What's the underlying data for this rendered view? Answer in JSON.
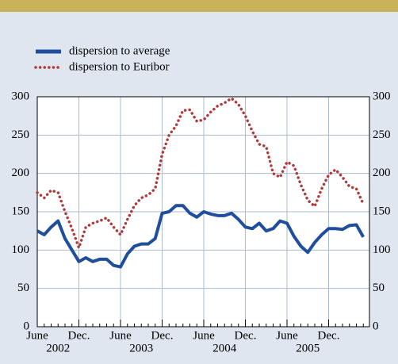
{
  "chart_data": {
    "type": "line",
    "x": [
      "2002-06",
      "2002-07",
      "2002-08",
      "2002-09",
      "2002-10",
      "2002-11",
      "2002-12",
      "2003-01",
      "2003-02",
      "2003-03",
      "2003-04",
      "2003-05",
      "2003-06",
      "2003-07",
      "2003-08",
      "2003-09",
      "2003-10",
      "2003-11",
      "2003-12",
      "2004-01",
      "2004-02",
      "2004-03",
      "2004-04",
      "2004-05",
      "2004-06",
      "2004-07",
      "2004-08",
      "2004-09",
      "2004-10",
      "2004-11",
      "2004-12",
      "2005-01",
      "2005-02",
      "2005-03",
      "2005-04",
      "2005-05",
      "2005-06",
      "2005-07",
      "2005-08",
      "2005-09",
      "2005-10",
      "2005-11",
      "2005-12",
      "2006-01",
      "2006-02",
      "2006-03",
      "2006-04",
      "2006-05"
    ],
    "series": [
      {
        "name": "dispersion to average",
        "color": "#1f4e9c",
        "style": "solid",
        "values": [
          125,
          120,
          130,
          138,
          115,
          100,
          85,
          90,
          85,
          88,
          88,
          80,
          78,
          95,
          105,
          108,
          108,
          115,
          148,
          150,
          158,
          158,
          148,
          143,
          150,
          147,
          145,
          145,
          148,
          140,
          130,
          128,
          135,
          125,
          128,
          138,
          135,
          118,
          105,
          97,
          110,
          120,
          128,
          128,
          127,
          132,
          133,
          117
        ]
      },
      {
        "name": "dispersion to Euribor",
        "color": "#b03a3a",
        "style": "dotted",
        "values": [
          175,
          168,
          178,
          175,
          150,
          128,
          103,
          130,
          135,
          138,
          142,
          130,
          120,
          140,
          158,
          168,
          172,
          180,
          225,
          250,
          262,
          282,
          283,
          268,
          270,
          280,
          288,
          292,
          298,
          290,
          275,
          255,
          238,
          235,
          200,
          195,
          215,
          210,
          185,
          165,
          157,
          180,
          198,
          205,
          195,
          183,
          180,
          160
        ]
      }
    ],
    "xticks": [
      {
        "value": "2002-06",
        "label": "June"
      },
      {
        "value": "2002-12",
        "label": "Dec."
      },
      {
        "value": "2003-06",
        "label": "June"
      },
      {
        "value": "2003-12",
        "label": "Dec."
      },
      {
        "value": "2004-06",
        "label": "June"
      },
      {
        "value": "2004-12",
        "label": "Dec."
      },
      {
        "value": "2005-06",
        "label": "June"
      },
      {
        "value": "2005-12",
        "label": "Dec."
      }
    ],
    "year_labels": [
      "2002",
      "2003",
      "2004",
      "2005"
    ],
    "ylim": [
      0,
      300
    ],
    "yticks": [
      0,
      50,
      100,
      150,
      200,
      250,
      300
    ],
    "y2lim": [
      0,
      300
    ],
    "y2ticks": [
      0,
      50,
      100,
      150,
      200,
      250,
      300
    ],
    "grid": true
  }
}
